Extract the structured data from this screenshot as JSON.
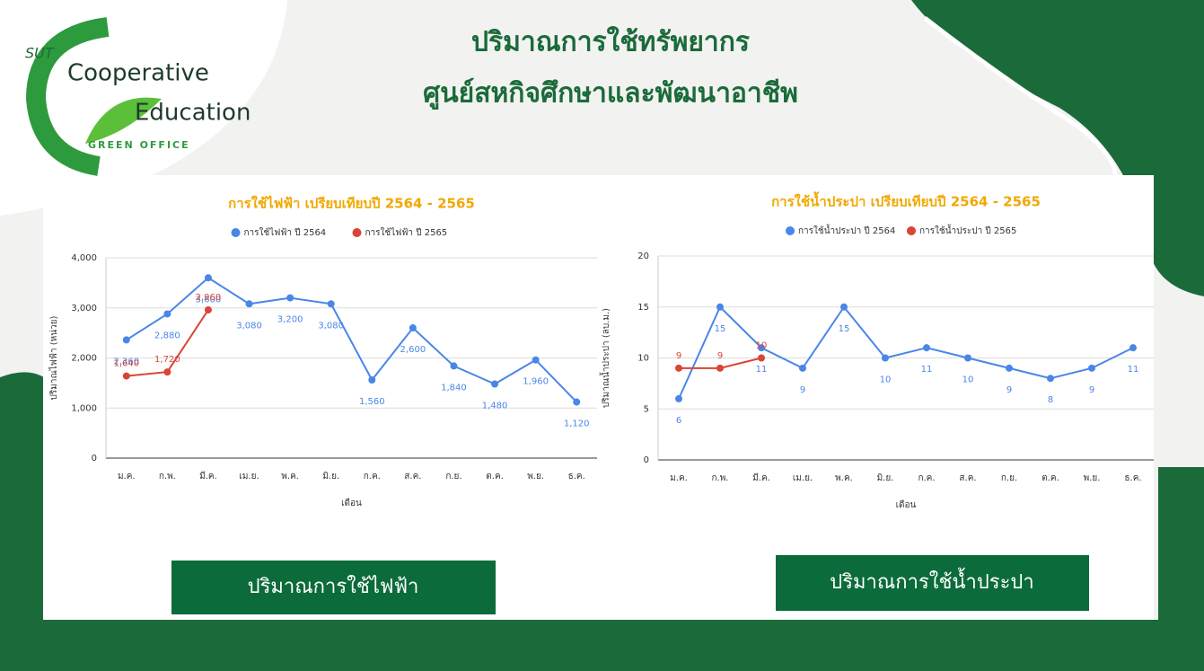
{
  "header": {
    "title_line1": "ปริมาณการใช้ทรัพยากร",
    "title_line2": "ศูนย์สหกิจศึกษาและพัฒนาอาชีพ"
  },
  "logo": {
    "mark": "SUT",
    "line1": "Cooperative",
    "line2": "Education",
    "line3": "GREEN OFFICE"
  },
  "buttons": [
    "ปริมาณการใช้ไฟฟ้า",
    "ปริมาณการใช้น้ำประปา"
  ],
  "chart_data": [
    {
      "type": "line",
      "title": "การใช้ไฟฟ้า เปรียบเทียบปี 2564 - 2565",
      "x_label": "เดือน",
      "y_label": "ปริมาณไฟฟ้า (หน่วย)",
      "categories": [
        "ม.ค.",
        "ก.พ.",
        "มี.ค.",
        "เม.ย.",
        "พ.ค.",
        "มิ.ย.",
        "ก.ค.",
        "ส.ค.",
        "ก.ย.",
        "ต.ค.",
        "พ.ย.",
        "ธ.ค."
      ],
      "series": [
        {
          "name": "การใช้ไฟฟ้า ปี 2564",
          "color": "#4a86e8",
          "values": [
            2360,
            2880,
            3600,
            3080,
            3200,
            3080,
            1560,
            2600,
            1840,
            1480,
            1960,
            1120
          ],
          "value_labels": [
            "2,360",
            "2,880",
            "3,600",
            "3,080",
            "3,200",
            "3,080",
            "1,560",
            "2,600",
            "1,840",
            "1,480",
            "1,960",
            "1,120"
          ]
        },
        {
          "name": "การใช้ไฟฟ้า ปี 2565",
          "color": "#db4437",
          "values": [
            1640,
            1720,
            2960,
            null,
            null,
            null,
            null,
            null,
            null,
            null,
            null,
            null
          ],
          "value_labels": [
            "1,640",
            "1,720",
            "2,960",
            null,
            null,
            null,
            null,
            null,
            null,
            null,
            null,
            null
          ]
        }
      ],
      "ylim": [
        0,
        4000
      ],
      "yticks": [
        0,
        {
          "value": 1000,
          "label": "1,000"
        },
        {
          "value": 2000,
          "label": "2,000"
        },
        {
          "value": 3000,
          "label": "3,000"
        },
        {
          "value": 4000,
          "label": "4,000"
        }
      ],
      "grid": true,
      "legend": "top"
    },
    {
      "type": "line",
      "title": "การใช้น้ำประปา เปรียบเทียบปี 2564 - 2565",
      "x_label": "เดือน",
      "y_label": "ปริมาณน้ำประปา (ลบ.ม.)",
      "categories": [
        "ม.ค.",
        "ก.พ.",
        "มี.ค.",
        "เม.ย.",
        "พ.ค.",
        "มิ.ย.",
        "ก.ค.",
        "ส.ค.",
        "ก.ย.",
        "ต.ค.",
        "พ.ย.",
        "ธ.ค."
      ],
      "series": [
        {
          "name": "การใช้น้ำประปา ปี 2564",
          "color": "#4a86e8",
          "values": [
            6,
            15,
            11,
            9,
            15,
            10,
            11,
            10,
            9,
            8,
            9,
            11
          ]
        },
        {
          "name": "การใช้น้ำประปา ปี 2565",
          "color": "#db4437",
          "values": [
            9,
            9,
            10,
            null,
            null,
            null,
            null,
            null,
            null,
            null,
            null,
            null
          ]
        }
      ],
      "ylim": [
        0,
        20
      ],
      "yticks": [
        0,
        5,
        10,
        15,
        20
      ],
      "grid": true,
      "legend": "top"
    }
  ]
}
